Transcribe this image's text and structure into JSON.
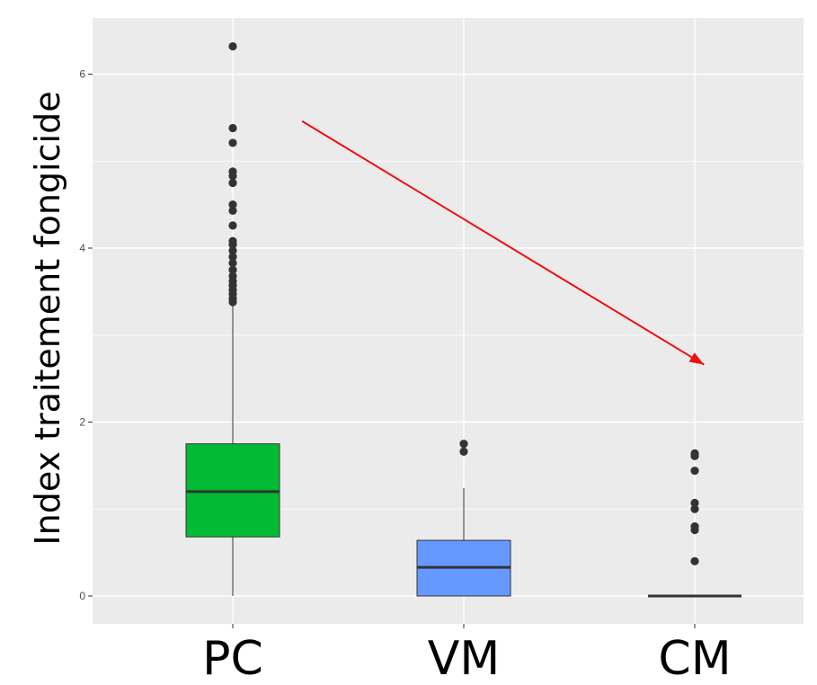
{
  "chart_data": {
    "type": "box",
    "title": "",
    "xlabel": "",
    "ylabel": "Index traitement fongicide",
    "categories": [
      "PC",
      "VM",
      "CM"
    ],
    "y_ticks": [
      0,
      2,
      4,
      6
    ],
    "ylim": [
      -0.32,
      6.7
    ],
    "grid": true,
    "legend": "none",
    "colors": {
      "panel": "#ebebeb",
      "grid": "#ffffff",
      "arrow": "#ee1111",
      "outline": "#333333"
    },
    "series": [
      {
        "category": "PC",
        "color": "#00bb33",
        "min": 0,
        "q1": 0.68,
        "median": 1.2,
        "q3": 1.75,
        "whisker_high": 3.35,
        "outliers": [
          3.38,
          3.42,
          3.47,
          3.52,
          3.57,
          3.62,
          3.68,
          3.75,
          3.83,
          3.9,
          3.97,
          4.04,
          4.08,
          4.26,
          4.43,
          4.5,
          4.75,
          4.83,
          4.88,
          5.21,
          5.38,
          6.32
        ]
      },
      {
        "category": "VM",
        "color": "#6699ff",
        "min": 0,
        "q1": 0,
        "median": 0.33,
        "q3": 0.64,
        "whisker_high": 1.24,
        "outliers": [
          1.66,
          1.75
        ]
      },
      {
        "category": "CM",
        "color": "#6699ff",
        "min": 0,
        "q1": 0,
        "median": 0,
        "q3": 0,
        "whisker_high": 0,
        "outliers": [
          0.4,
          0.76,
          0.8,
          1.0,
          1.07,
          1.44,
          1.61,
          1.64
        ]
      }
    ],
    "annotation": {
      "type": "arrow",
      "from": {
        "x": 0.3,
        "y": 5.46
      },
      "to": {
        "x": 2.04,
        "y": 2.66
      }
    }
  }
}
